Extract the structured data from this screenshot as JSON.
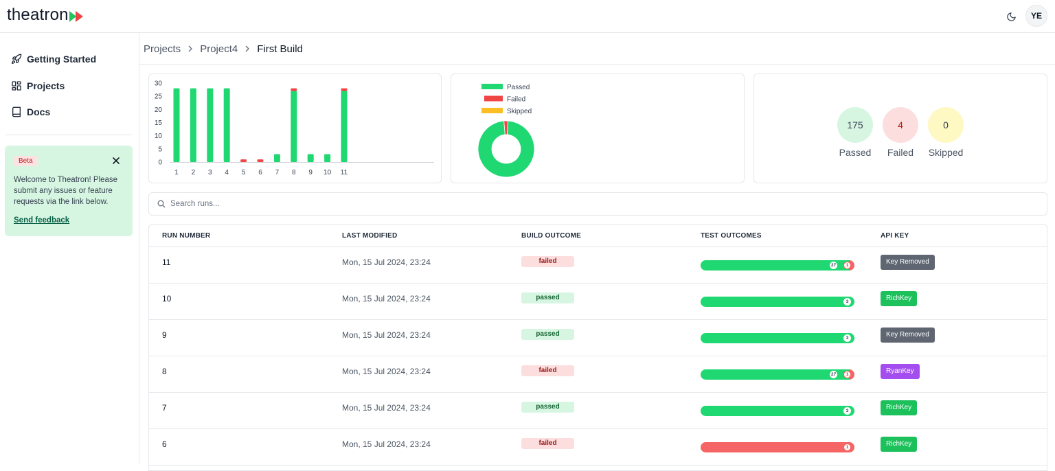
{
  "app": {
    "name": "theatron",
    "avatar_initials": "YE"
  },
  "colors": {
    "passed": "#1fd872",
    "failed": "#f04545",
    "skipped": "#fbbf24",
    "brand_green": "#22c55e",
    "brand_red": "#ef4444"
  },
  "sidebar": {
    "items": [
      {
        "label": "Getting Started",
        "icon": "rocket-icon"
      },
      {
        "label": "Projects",
        "icon": "grid-icon"
      },
      {
        "label": "Docs",
        "icon": "book-icon"
      }
    ],
    "beta": {
      "badge": "Beta",
      "message": "Welcome to Theatron! Please submit any issues or feature requests via the link below.",
      "link": "Send feedback"
    }
  },
  "breadcrumb": [
    "Projects",
    "Project4",
    "First Build"
  ],
  "chart_data": [
    {
      "type": "bar",
      "categories": [
        "1",
        "2",
        "3",
        "4",
        "5",
        "6",
        "7",
        "8",
        "9",
        "10",
        "11"
      ],
      "series": [
        {
          "values": [
            28,
            28,
            28,
            28,
            0,
            0,
            3,
            27,
            3,
            3,
            27
          ]
        },
        {
          "values": [
            0,
            0,
            0,
            0,
            1,
            1,
            0,
            1,
            0,
            0,
            1
          ]
        }
      ],
      "y_ticks": [
        "0",
        "5",
        "10",
        "15",
        "20",
        "25",
        "30"
      ],
      "ylim": [
        0,
        30
      ],
      "stacked": true
    },
    {
      "type": "pie",
      "donut": true,
      "labels": [
        "Passed",
        "Failed",
        "Skipped"
      ],
      "values": [
        175,
        4,
        0
      ],
      "legend_position": "top-left"
    }
  ],
  "stats": [
    {
      "value": "175",
      "label": "Passed",
      "bg": "#d7f6e2",
      "fg": "#374151"
    },
    {
      "value": "4",
      "label": "Failed",
      "bg": "#fddede",
      "fg": "#b91c1c"
    },
    {
      "value": "0",
      "label": "Skipped",
      "bg": "#fef8c3",
      "fg": "#374151"
    }
  ],
  "search": {
    "placeholder": "Search runs..."
  },
  "table": {
    "headers": [
      "RUN NUMBER",
      "LAST MODIFIED",
      "BUILD OUTCOME",
      "TEST OUTCOMES",
      "API KEY"
    ],
    "rows": [
      {
        "run": "11",
        "modified": "Mon, 15 Jul 2024, 23:24",
        "outcome": "failed",
        "passed": 27,
        "failed": 1,
        "key": "Key Removed",
        "key_color": "#5f6671"
      },
      {
        "run": "10",
        "modified": "Mon, 15 Jul 2024, 23:24",
        "outcome": "passed",
        "passed": 3,
        "failed": 0,
        "key": "RichKey",
        "key_color": "#1cc15c"
      },
      {
        "run": "9",
        "modified": "Mon, 15 Jul 2024, 23:24",
        "outcome": "passed",
        "passed": 3,
        "failed": 0,
        "key": "Key Removed",
        "key_color": "#5f6671"
      },
      {
        "run": "8",
        "modified": "Mon, 15 Jul 2024, 23:24",
        "outcome": "failed",
        "passed": 27,
        "failed": 1,
        "key": "RyanKey",
        "key_color": "#a44ef0"
      },
      {
        "run": "7",
        "modified": "Mon, 15 Jul 2024, 23:24",
        "outcome": "passed",
        "passed": 3,
        "failed": 0,
        "key": "RichKey",
        "key_color": "#1cc15c"
      },
      {
        "run": "6",
        "modified": "Mon, 15 Jul 2024, 23:24",
        "outcome": "failed",
        "passed": 0,
        "failed": 1,
        "key": "RichKey",
        "key_color": "#1cc15c"
      }
    ]
  }
}
